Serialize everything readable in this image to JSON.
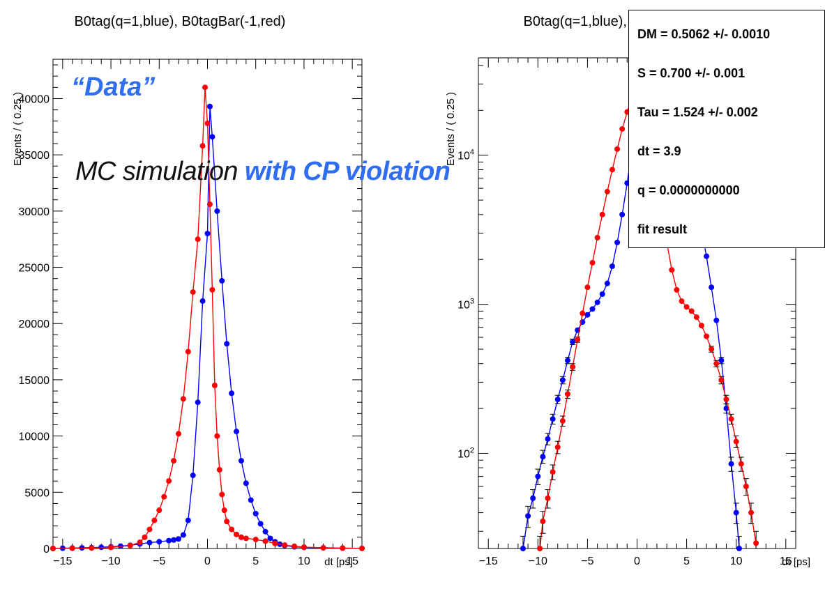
{
  "colors": {
    "blue": "#0000ff",
    "red": "#ff0000",
    "annotation_blue": "#2f6ef0"
  },
  "annotations": {
    "data_label": "“Data”",
    "mc_prefix": "MC simulation ",
    "mc_highlight": "with CP violation"
  },
  "fit_box": {
    "lines": [
      "DM =  0.5062 +/- 0.0010",
      "S =  0.700 +/- 0.001",
      "Tau =  1.524 +/- 0.002",
      "dt =  3.9",
      "q =  0.0000000000",
      "fit result"
    ]
  },
  "chart_data": [
    {
      "type": "scatter",
      "title": "B0tag(q=1,blue), B0tagBar(-1,red)",
      "xlabel": "dt [ps]",
      "ylabel": "Events / ( 0.25 )",
      "xlim": [
        -16,
        16
      ],
      "ylim": [
        0,
        43500
      ],
      "log_y": false,
      "x_ticks": [
        -15,
        -10,
        -5,
        0,
        5,
        10,
        15
      ],
      "y_ticks": [
        0,
        5000,
        10000,
        15000,
        20000,
        25000,
        30000,
        35000,
        40000
      ],
      "grid": false,
      "legend": "none",
      "series": [
        {
          "color": "blue",
          "points": [
            [
              -16,
              0
            ],
            [
              -15,
              25
            ],
            [
              -14,
              40
            ],
            [
              -13,
              55
            ],
            [
              -12,
              75
            ],
            [
              -11,
              110
            ],
            [
              -10,
              150
            ],
            [
              -9,
              210
            ],
            [
              -8,
              290
            ],
            [
              -7,
              400
            ],
            [
              -6,
              520
            ],
            [
              -5,
              600
            ],
            [
              -4,
              700
            ],
            [
              -3.5,
              760
            ],
            [
              -3,
              850
            ],
            [
              -2.5,
              1200
            ],
            [
              -2,
              2500
            ],
            [
              -1.5,
              6500
            ],
            [
              -1,
              13000
            ],
            [
              -0.5,
              22000
            ],
            [
              0,
              28000
            ],
            [
              0.25,
              39300
            ],
            [
              0.5,
              36600
            ],
            [
              1,
              30000
            ],
            [
              1.5,
              23800
            ],
            [
              2,
              18200
            ],
            [
              2.5,
              13800
            ],
            [
              3,
              10400
            ],
            [
              3.5,
              7800
            ],
            [
              4,
              5800
            ],
            [
              4.5,
              4300
            ],
            [
              5,
              3100
            ],
            [
              5.5,
              2200
            ],
            [
              6,
              1500
            ],
            [
              6.5,
              900
            ],
            [
              7,
              600
            ],
            [
              7.5,
              380
            ],
            [
              8,
              260
            ],
            [
              9,
              150
            ],
            [
              10,
              100
            ],
            [
              12,
              60
            ],
            [
              14,
              30
            ],
            [
              16,
              10
            ]
          ]
        },
        {
          "color": "red",
          "points": [
            [
              -16,
              5
            ],
            [
              -14,
              15
            ],
            [
              -12,
              40
            ],
            [
              -10,
              100
            ],
            [
              -8,
              260
            ],
            [
              -7,
              550
            ],
            [
              -6.5,
              1000
            ],
            [
              -6,
              1700
            ],
            [
              -5.5,
              2500
            ],
            [
              -5,
              3400
            ],
            [
              -4.5,
              4600
            ],
            [
              -4,
              6000
            ],
            [
              -3.5,
              7800
            ],
            [
              -3,
              10200
            ],
            [
              -2.5,
              13300
            ],
            [
              -2,
              17500
            ],
            [
              -1.5,
              22800
            ],
            [
              -1,
              27500
            ],
            [
              -0.5,
              35800
            ],
            [
              -0.25,
              41000
            ],
            [
              0,
              37800
            ],
            [
              0.25,
              30600
            ],
            [
              0.5,
              23000
            ],
            [
              0.75,
              14500
            ],
            [
              1,
              10000
            ],
            [
              1.25,
              7000
            ],
            [
              1.5,
              4800
            ],
            [
              1.75,
              3400
            ],
            [
              2,
              2400
            ],
            [
              2.5,
              1700
            ],
            [
              3,
              1250
            ],
            [
              3.5,
              1000
            ],
            [
              4,
              900
            ],
            [
              5,
              800
            ],
            [
              6,
              650
            ],
            [
              7,
              450
            ],
            [
              8,
              300
            ],
            [
              9,
              200
            ],
            [
              10,
              120
            ],
            [
              12,
              60
            ],
            [
              14,
              30
            ],
            [
              16,
              10
            ]
          ]
        }
      ]
    },
    {
      "type": "scatter",
      "title": "B0tag(q=1,blue), B0tagBar(-1,red)",
      "xlabel": "dt [ps]",
      "ylabel": "Events / ( 0.25 )",
      "xlim": [
        -16,
        16
      ],
      "ylim": [
        23,
        45000
      ],
      "log_y": true,
      "x_ticks": [
        -15,
        -10,
        -5,
        0,
        5,
        10,
        15
      ],
      "y_ticks": [
        100,
        1000,
        10000
      ],
      "y_tick_labels": [
        "10^2",
        "10^3",
        "10^4"
      ],
      "grid": false,
      "legend": "none",
      "series": [
        {
          "color": "blue",
          "points": [
            [
              -11.5,
              23
            ],
            [
              -11,
              38
            ],
            [
              -10.5,
              50
            ],
            [
              -10,
              70
            ],
            [
              -9.5,
              95
            ],
            [
              -9,
              125
            ],
            [
              -8.5,
              170
            ],
            [
              -8,
              230
            ],
            [
              -7.5,
              310
            ],
            [
              -7,
              420
            ],
            [
              -6.5,
              560
            ],
            [
              -6,
              670
            ],
            [
              -5.5,
              760
            ],
            [
              -5,
              850
            ],
            [
              -4.5,
              930
            ],
            [
              -4,
              1030
            ],
            [
              -3.5,
              1170
            ],
            [
              -3,
              1380
            ],
            [
              -2.5,
              1800
            ],
            [
              -2,
              2600
            ],
            [
              -1.5,
              4000
            ],
            [
              -1,
              6500
            ],
            [
              -0.5,
              11000
            ],
            [
              0,
              16000
            ],
            [
              0.5,
              22000
            ],
            [
              1,
              27000
            ],
            [
              1.5,
              30000
            ],
            [
              2,
              30000
            ],
            [
              2.5,
              28000
            ],
            [
              3,
              24000
            ],
            [
              3.5,
              20000
            ],
            [
              4,
              16000
            ],
            [
              4.5,
              12000
            ],
            [
              5,
              9000
            ],
            [
              5.5,
              6700
            ],
            [
              6,
              4800
            ],
            [
              6.5,
              3200
            ],
            [
              7,
              2100
            ],
            [
              7.5,
              1300
            ],
            [
              8,
              780
            ],
            [
              8.5,
              420
            ],
            [
              9,
              200
            ],
            [
              9.5,
              85
            ],
            [
              10,
              40
            ],
            [
              10.3,
              23
            ]
          ]
        },
        {
          "color": "red",
          "points": [
            [
              -9.8,
              23
            ],
            [
              -9.5,
              35
            ],
            [
              -9,
              50
            ],
            [
              -8.5,
              75
            ],
            [
              -8,
              110
            ],
            [
              -7.5,
              165
            ],
            [
              -7,
              250
            ],
            [
              -6.5,
              380
            ],
            [
              -6,
              580
            ],
            [
              -5.5,
              870
            ],
            [
              -5,
              1300
            ],
            [
              -4.5,
              1900
            ],
            [
              -4,
              2800
            ],
            [
              -3.5,
              4000
            ],
            [
              -3,
              5700
            ],
            [
              -2.5,
              8000
            ],
            [
              -2,
              11000
            ],
            [
              -1.5,
              15000
            ],
            [
              -1,
              19500
            ],
            [
              -0.5,
              24500
            ],
            [
              0,
              27000
            ],
            [
              0.5,
              23000
            ],
            [
              1,
              16000
            ],
            [
              1.5,
              11000
            ],
            [
              2,
              7000
            ],
            [
              2.5,
              4300
            ],
            [
              3,
              2600
            ],
            [
              3.5,
              1700
            ],
            [
              4,
              1250
            ],
            [
              4.5,
              1050
            ],
            [
              5,
              960
            ],
            [
              5.5,
              900
            ],
            [
              6,
              820
            ],
            [
              6.5,
              720
            ],
            [
              7,
              610
            ],
            [
              7.5,
              500
            ],
            [
              8,
              400
            ],
            [
              8.5,
              310
            ],
            [
              9,
              230
            ],
            [
              9.5,
              170
            ],
            [
              10,
              120
            ],
            [
              10.5,
              85
            ],
            [
              11,
              60
            ],
            [
              11.5,
              40
            ],
            [
              12,
              25
            ]
          ]
        }
      ]
    }
  ]
}
